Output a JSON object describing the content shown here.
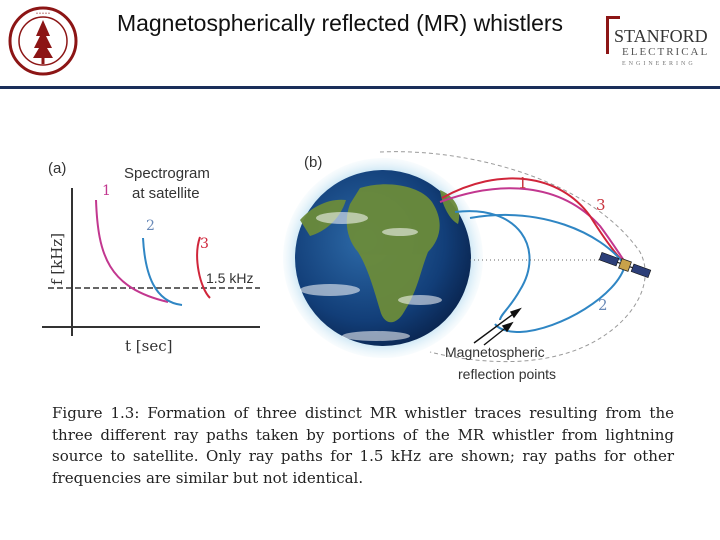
{
  "header": {
    "title": "Magnetospherically reflected (MR) whistlers",
    "logo_text_top": "STANFORD",
    "logo_text_mid": "ELECTRICAL",
    "logo_text_bottom": "ENGINEERING",
    "accent_color": "#8c1515",
    "rule_color": "#1a2e5a"
  },
  "figure": {
    "panel_a": {
      "label": "(a)",
      "heading_line1": "Spectrogram",
      "heading_line2": "at satellite",
      "y_axis_label": "f  [kHz]",
      "x_axis_label": "t  [sec]",
      "freq_label": "1.5 kHz",
      "trace_labels": [
        "1",
        "2",
        "3"
      ]
    },
    "panel_b": {
      "label": "(b)",
      "path_labels": [
        "1",
        "3",
        "2"
      ],
      "reflection_label_line1": "Magnetospheric",
      "reflection_label_line2": "reflection points"
    },
    "colors": {
      "trace1": "#c2378f",
      "trace2": "#2f86c4",
      "trace3": "#d0253a",
      "label_red": "#c8323c",
      "label_blue": "#6a8ab8"
    }
  },
  "caption": {
    "text": "Figure 1.3: Formation of three distinct MR whistler traces resulting from the three different ray paths taken by portions of the MR whistler from lightning source to satellite. Only ray paths for 1.5 kHz are shown; ray paths for other frequencies are similar but not identical."
  }
}
